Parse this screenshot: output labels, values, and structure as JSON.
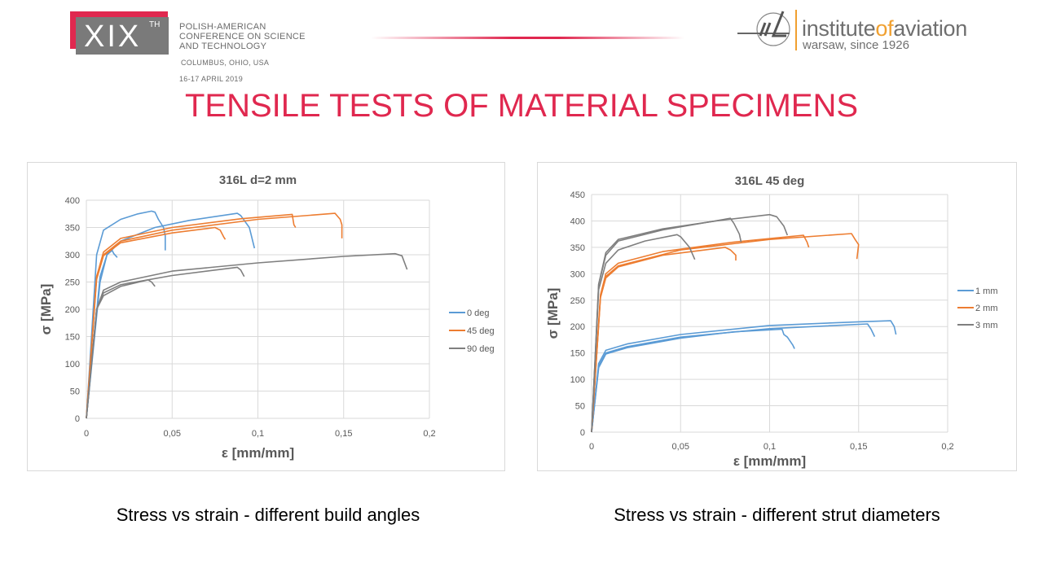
{
  "header": {
    "conference_logo": {
      "numeral": "XIX",
      "suffix": "TH"
    },
    "conference_lines": [
      "POLISH-AMERICAN",
      "CONFERENCE ON SCIENCE",
      "AND TECHNOLOGY"
    ],
    "location": "COLUMBUS, OHIO, USA",
    "dates": "16-17 APRIL 2019",
    "institute_logo": {
      "name_part1": "institute",
      "name_part2": "of",
      "name_part3": "aviation",
      "subtitle": "warsaw, since 1926"
    }
  },
  "slide_title": "TENSILE TESTS OF MATERIAL SPECIMENS",
  "captions": [
    "Stress vs strain - different build angles",
    "Stress vs strain - different strut diameters"
  ],
  "colors": {
    "accent": "#e0284f",
    "blue": "#5b9bd5",
    "orange": "#ed7d31",
    "gray": "#7f7f7f"
  },
  "chart_data": [
    {
      "type": "line",
      "title": "316L d=2 mm",
      "xlabel": "ε [mm/mm]",
      "ylabel": "σ [MPa]",
      "xlim": [
        0,
        0.2
      ],
      "ylim": [
        0,
        400
      ],
      "xticks": [
        0,
        0.05,
        0.1,
        0.15,
        0.2
      ],
      "xtick_labels": [
        "0",
        "0,05",
        "0,1",
        "0,15",
        "0,2"
      ],
      "yticks": [
        0,
        50,
        100,
        150,
        200,
        250,
        300,
        350,
        400
      ],
      "ytick_labels": [
        "0",
        "50",
        "100",
        "150",
        "200",
        "250",
        "300",
        "350",
        "400"
      ],
      "grid": true,
      "legend": "right",
      "series": [
        {
          "name": "0 deg",
          "color": "#5b9bd5",
          "curves": [
            [
              [
                0,
                0
              ],
              [
                0.006,
                300
              ],
              [
                0.01,
                345
              ],
              [
                0.02,
                365
              ],
              [
                0.03,
                375
              ],
              [
                0.038,
                380
              ],
              [
                0.04,
                378
              ],
              [
                0.042,
                365
              ],
              [
                0.045,
                350
              ],
              [
                0.046,
                335
              ],
              [
                0.046,
                308
              ]
            ],
            [
              [
                0,
                0
              ],
              [
                0.008,
                250
              ],
              [
                0.012,
                300
              ],
              [
                0.02,
                325
              ],
              [
                0.04,
                350
              ],
              [
                0.06,
                363
              ],
              [
                0.088,
                376
              ],
              [
                0.09,
                372
              ],
              [
                0.095,
                350
              ],
              [
                0.098,
                312
              ]
            ],
            [
              [
                0,
                0
              ],
              [
                0.008,
                260
              ],
              [
                0.012,
                300
              ],
              [
                0.015,
                308
              ],
              [
                0.016,
                302
              ],
              [
                0.018,
                295
              ]
            ]
          ]
        },
        {
          "name": "45 deg",
          "color": "#ed7d31",
          "curves": [
            [
              [
                0,
                0
              ],
              [
                0.006,
                260
              ],
              [
                0.01,
                305
              ],
              [
                0.02,
                330
              ],
              [
                0.05,
                350
              ],
              [
                0.09,
                366
              ],
              [
                0.12,
                374
              ],
              [
                0.121,
                355
              ],
              [
                0.122,
                350
              ]
            ],
            [
              [
                0,
                0
              ],
              [
                0.006,
                260
              ],
              [
                0.01,
                300
              ],
              [
                0.02,
                325
              ],
              [
                0.05,
                345
              ],
              [
                0.1,
                365
              ],
              [
                0.145,
                376
              ],
              [
                0.148,
                365
              ],
              [
                0.149,
                355
              ],
              [
                0.149,
                330
              ]
            ],
            [
              [
                0,
                0
              ],
              [
                0.006,
                255
              ],
              [
                0.01,
                298
              ],
              [
                0.02,
                322
              ],
              [
                0.05,
                340
              ],
              [
                0.075,
                350
              ],
              [
                0.078,
                345
              ],
              [
                0.08,
                333
              ],
              [
                0.081,
                328
              ]
            ]
          ]
        },
        {
          "name": "90 deg",
          "color": "#7f7f7f",
          "curves": [
            [
              [
                0,
                0
              ],
              [
                0.006,
                200
              ],
              [
                0.01,
                235
              ],
              [
                0.02,
                250
              ],
              [
                0.05,
                270
              ],
              [
                0.1,
                285
              ],
              [
                0.15,
                297
              ],
              [
                0.18,
                302
              ],
              [
                0.184,
                298
              ],
              [
                0.187,
                273
              ]
            ],
            [
              [
                0,
                0
              ],
              [
                0.006,
                200
              ],
              [
                0.01,
                230
              ],
              [
                0.02,
                245
              ],
              [
                0.05,
                262
              ],
              [
                0.088,
                277
              ],
              [
                0.09,
                272
              ],
              [
                0.092,
                260
              ]
            ],
            [
              [
                0,
                0
              ],
              [
                0.006,
                200
              ],
              [
                0.01,
                225
              ],
              [
                0.02,
                242
              ],
              [
                0.036,
                254
              ],
              [
                0.038,
                250
              ],
              [
                0.04,
                242
              ]
            ]
          ]
        }
      ]
    },
    {
      "type": "line",
      "title": "316L 45 deg",
      "xlabel": "ε [mm/mm]",
      "ylabel": "σ [MPa]",
      "xlim": [
        0,
        0.2
      ],
      "ylim": [
        0,
        450
      ],
      "xticks": [
        0,
        0.05,
        0.1,
        0.15,
        0.2
      ],
      "xtick_labels": [
        "0",
        "0,05",
        "0,1",
        "0,15",
        "0,2"
      ],
      "yticks": [
        0,
        50,
        100,
        150,
        200,
        250,
        300,
        350,
        400,
        450
      ],
      "ytick_labels": [
        "0",
        "50",
        "100",
        "150",
        "200",
        "250",
        "300",
        "350",
        "400",
        "450"
      ],
      "grid": true,
      "legend": "right",
      "series": [
        {
          "name": "1 mm",
          "color": "#5b9bd5",
          "curves": [
            [
              [
                0,
                0
              ],
              [
                0.004,
                130
              ],
              [
                0.008,
                155
              ],
              [
                0.02,
                167
              ],
              [
                0.05,
                185
              ],
              [
                0.1,
                202
              ],
              [
                0.15,
                209
              ],
              [
                0.168,
                211
              ],
              [
                0.17,
                200
              ],
              [
                0.171,
                185
              ]
            ],
            [
              [
                0,
                0
              ],
              [
                0.004,
                125
              ],
              [
                0.008,
                150
              ],
              [
                0.02,
                162
              ],
              [
                0.05,
                180
              ],
              [
                0.1,
                196
              ],
              [
                0.155,
                205
              ],
              [
                0.157,
                195
              ],
              [
                0.159,
                181
              ]
            ],
            [
              [
                0,
                0
              ],
              [
                0.004,
                122
              ],
              [
                0.008,
                148
              ],
              [
                0.02,
                160
              ],
              [
                0.05,
                178
              ],
              [
                0.08,
                190
              ],
              [
                0.107,
                195
              ],
              [
                0.108,
                185
              ],
              [
                0.11,
                180
              ],
              [
                0.113,
                165
              ],
              [
                0.114,
                158
              ]
            ]
          ]
        },
        {
          "name": "2 mm",
          "color": "#ed7d31",
          "curves": [
            [
              [
                0,
                0
              ],
              [
                0.005,
                260
              ],
              [
                0.008,
                300
              ],
              [
                0.015,
                320
              ],
              [
                0.04,
                342
              ],
              [
                0.08,
                360
              ],
              [
                0.119,
                373
              ],
              [
                0.121,
                360
              ],
              [
                0.122,
                350
              ]
            ],
            [
              [
                0,
                0
              ],
              [
                0.005,
                255
              ],
              [
                0.008,
                295
              ],
              [
                0.015,
                315
              ],
              [
                0.05,
                345
              ],
              [
                0.1,
                365
              ],
              [
                0.146,
                376
              ],
              [
                0.148,
                365
              ],
              [
                0.15,
                355
              ],
              [
                0.149,
                328
              ]
            ],
            [
              [
                0,
                0
              ],
              [
                0.005,
                255
              ],
              [
                0.008,
                292
              ],
              [
                0.015,
                313
              ],
              [
                0.04,
                335
              ],
              [
                0.075,
                350
              ],
              [
                0.078,
                345
              ],
              [
                0.081,
                335
              ],
              [
                0.081,
                325
              ]
            ]
          ]
        },
        {
          "name": "3 mm",
          "color": "#7f7f7f",
          "curves": [
            [
              [
                0,
                0
              ],
              [
                0.004,
                280
              ],
              [
                0.008,
                340
              ],
              [
                0.015,
                365
              ],
              [
                0.04,
                385
              ],
              [
                0.07,
                400
              ],
              [
                0.1,
                412
              ],
              [
                0.104,
                408
              ],
              [
                0.108,
                390
              ],
              [
                0.11,
                373
              ]
            ],
            [
              [
                0,
                0
              ],
              [
                0.004,
                280
              ],
              [
                0.008,
                335
              ],
              [
                0.015,
                362
              ],
              [
                0.04,
                383
              ],
              [
                0.078,
                405
              ],
              [
                0.08,
                395
              ],
              [
                0.083,
                375
              ],
              [
                0.084,
                360
              ]
            ],
            [
              [
                0,
                0
              ],
              [
                0.004,
                270
              ],
              [
                0.008,
                320
              ],
              [
                0.015,
                345
              ],
              [
                0.03,
                362
              ],
              [
                0.048,
                374
              ],
              [
                0.05,
                370
              ],
              [
                0.055,
                350
              ],
              [
                0.058,
                327
              ]
            ]
          ]
        }
      ]
    }
  ]
}
